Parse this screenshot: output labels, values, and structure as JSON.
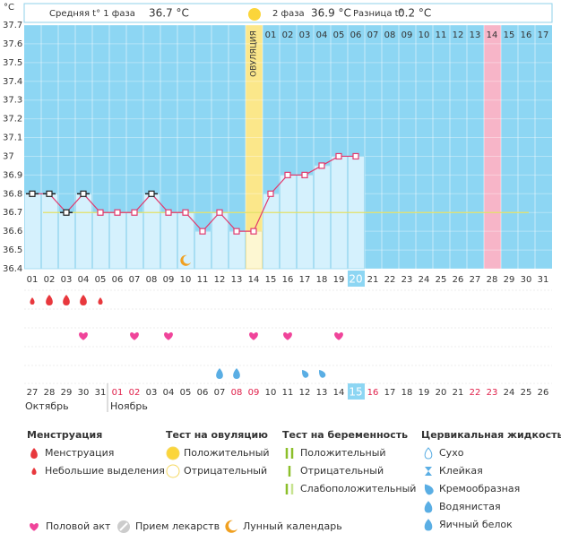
{
  "header": {
    "unit": "°C",
    "phase1": "Средняя t° 1 фаза",
    "phase1_value": "36.7 °C",
    "phase2": "2 фаза",
    "phase2_value": "36.9 °C",
    "difference": "Разница t°",
    "difference_value": "0.2 °C"
  },
  "chart_data": {
    "type": "line",
    "color": "#e23a6e",
    "ylim": [
      36.4,
      37.7
    ],
    "yticks": [
      37.7,
      37.6,
      37.5,
      37.4,
      37.3,
      37.2,
      37.1,
      37,
      36.9,
      36.8,
      36.7,
      36.6,
      36.5,
      36.4
    ],
    "categories": [
      "01",
      "02",
      "03",
      "04",
      "05",
      "06",
      "07",
      "08",
      "09",
      "10",
      "11",
      "12",
      "13",
      "14",
      "15",
      "16",
      "17",
      "18",
      "19",
      "20",
      "21",
      "22",
      "23",
      "24",
      "25",
      "26",
      "27",
      "28",
      "29",
      "30",
      "31"
    ],
    "values": [
      36.8,
      36.8,
      36.7,
      36.8,
      36.7,
      36.7,
      36.7,
      36.8,
      36.7,
      36.7,
      36.6,
      36.7,
      36.6,
      36.6,
      36.8,
      36.9,
      36.9,
      36.95,
      37,
      37,
      null,
      null,
      null,
      null,
      null,
      null,
      null,
      null,
      null,
      null,
      null
    ],
    "flagged_days": [
      1,
      2,
      3,
      4,
      8
    ],
    "cover_line": 36.7,
    "ovulation_day": 14,
    "ovulation_label": "ОВУЛЯЦИЯ",
    "current_day": 20,
    "expected_period_day": 28,
    "post_ovulation_days": [
      "01",
      "02",
      "03",
      "04",
      "05",
      "06",
      "07",
      "08",
      "09",
      "10",
      "11",
      "12",
      "13",
      "14",
      "15",
      "16",
      "17"
    ],
    "menstruation_heavy": [
      2,
      3,
      4
    ],
    "menstruation_light": [
      1,
      5
    ],
    "intercourse": [
      4,
      7,
      9,
      14,
      16,
      19
    ],
    "egg_white": [
      12,
      13
    ],
    "creamy": [
      17,
      18
    ],
    "moon": [
      10
    ],
    "dates": [
      "27",
      "28",
      "29",
      "30",
      "31",
      "01",
      "02",
      "03",
      "04",
      "05",
      "06",
      "07",
      "08",
      "09",
      "10",
      "11",
      "12",
      "13",
      "14",
      "15",
      "16",
      "17",
      "18",
      "19",
      "20",
      "21",
      "22",
      "23",
      "24",
      "25",
      "26"
    ],
    "weekend_days": [
      6,
      7,
      13,
      14,
      21,
      27,
      28
    ],
    "months": [
      {
        "label": "Октябрь",
        "start": 1
      },
      {
        "label": "Ноябрь",
        "start": 6
      }
    ]
  },
  "legend": {
    "menstruation": {
      "title": "Менструация",
      "items": [
        "Менструация",
        "Небольшие выделения"
      ]
    },
    "ovulation_test": {
      "title": "Тест на овуляцию",
      "items": [
        "Положительный",
        "Отрицательный"
      ]
    },
    "pregnancy_test": {
      "title": "Тест на беременность",
      "items": [
        "Положительный",
        "Отрицательный",
        "Слабоположительный"
      ]
    },
    "cervical_fluid": {
      "title": "Цервикальная жидкость",
      "items": [
        "Сухо",
        "Клейкая",
        "Кремообразная",
        "Водянистая",
        "Яичный белок"
      ]
    },
    "other": [
      "Половой акт",
      "Прием лекарств",
      "Лунный календарь"
    ]
  }
}
